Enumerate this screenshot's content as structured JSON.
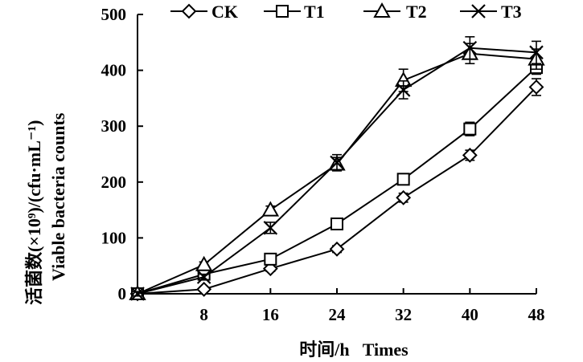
{
  "chart_data": {
    "type": "line",
    "x": [
      0,
      8,
      16,
      24,
      32,
      40,
      48
    ],
    "x_tick_labels": [
      "8",
      "16",
      "24",
      "32",
      "40",
      "48"
    ],
    "x_ticks": [
      8,
      16,
      24,
      32,
      40,
      48
    ],
    "xlim": [
      0,
      48
    ],
    "ylim": [
      0,
      500
    ],
    "y_ticks": [
      0,
      100,
      200,
      300,
      400,
      500
    ],
    "y_tick_labels": [
      "0",
      "100",
      "200",
      "300",
      "400",
      "500"
    ],
    "xlabel": "时间/h   Times",
    "ylabel_line1": "活菌数(×10⁹)/(cfu·mL⁻¹)",
    "ylabel_line2": "Viable bacteria counts",
    "legend_position": "top",
    "grid": false,
    "series": [
      {
        "name": "CK",
        "marker": "diamond",
        "values": [
          0,
          8,
          45,
          80,
          172,
          248,
          370
        ],
        "errors": [
          4,
          4,
          5,
          6,
          8,
          9,
          15
        ]
      },
      {
        "name": "T1",
        "marker": "square",
        "values": [
          0,
          35,
          62,
          125,
          205,
          295,
          405
        ],
        "errors": [
          4,
          5,
          6,
          7,
          9,
          12,
          12
        ]
      },
      {
        "name": "T2",
        "marker": "triangle",
        "values": [
          0,
          52,
          150,
          232,
          382,
          430,
          420
        ],
        "errors": [
          4,
          5,
          7,
          12,
          20,
          18,
          18
        ]
      },
      {
        "name": "T3",
        "marker": "x",
        "values": [
          0,
          30,
          118,
          235,
          365,
          440,
          432
        ],
        "errors": [
          4,
          5,
          10,
          14,
          16,
          20,
          20
        ]
      }
    ]
  }
}
